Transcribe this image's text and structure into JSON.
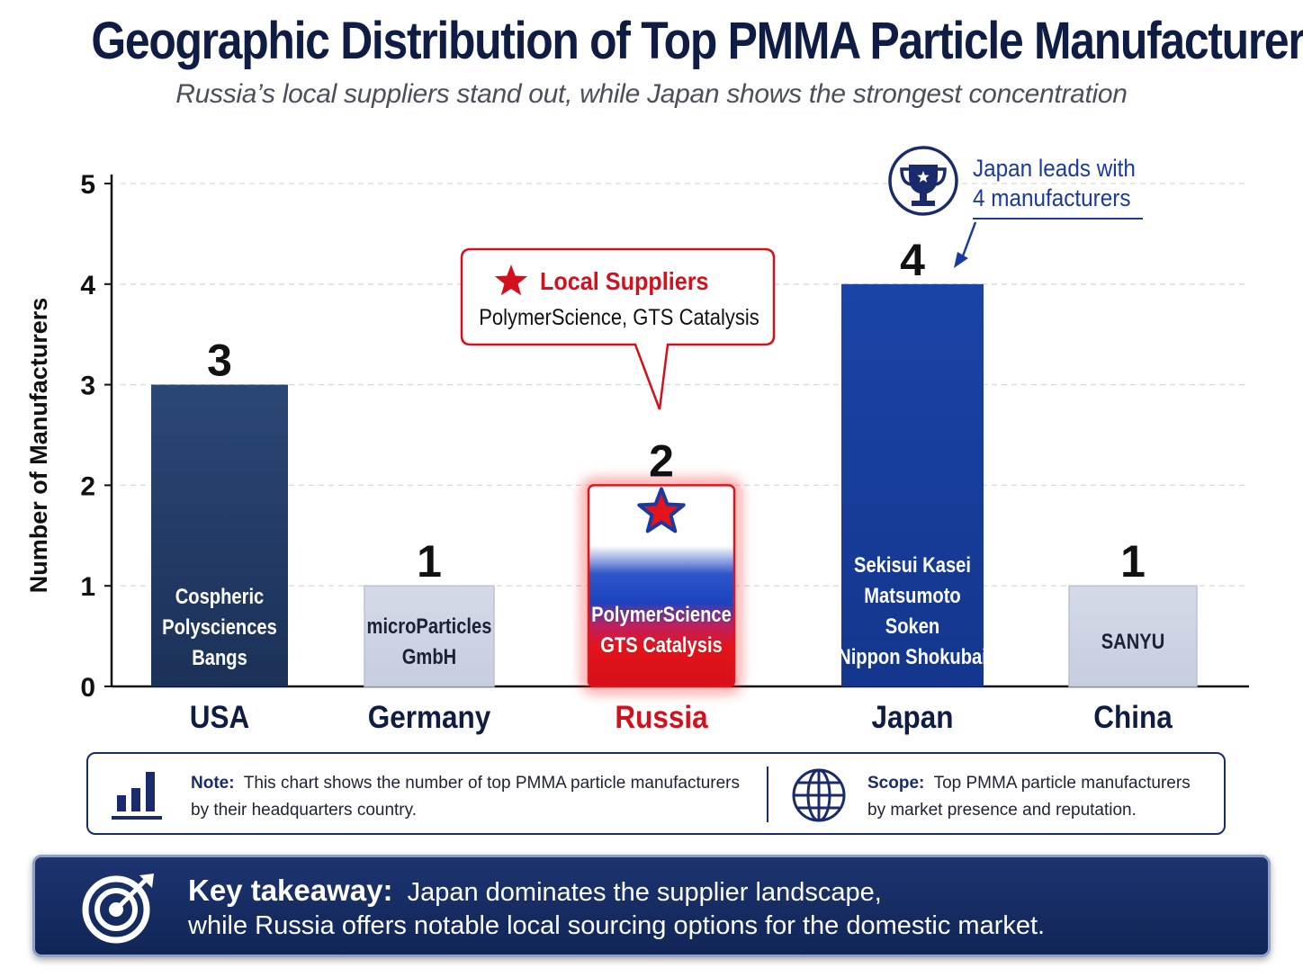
{
  "title": "Geographic Distribution of Top PMMA Particle Manufacturers",
  "subtitle": "Russia’s local suppliers stand out, while Japan shows the strongest concentration",
  "chart_data": {
    "type": "bar",
    "ylabel": "Number of Manufacturers",
    "xlabel": "",
    "ylim": [
      0,
      5
    ],
    "yticks": [
      "0",
      "1",
      "2",
      "3",
      "4",
      "5"
    ],
    "grid": true,
    "categories": [
      "USA",
      "Germany",
      "Russia",
      "Japan",
      "China"
    ],
    "values": [
      3,
      1,
      2,
      4,
      1
    ],
    "value_labels": [
      "3",
      "1",
      "2",
      "4",
      "1"
    ],
    "bar_names": [
      [
        "Cospheric",
        "Polysciences",
        "Bangs"
      ],
      [
        "microParticles",
        "GmbH"
      ],
      [
        "PolymerScience",
        "GTS Catalysis"
      ],
      [
        "Sekisui Kasei",
        "Matsumoto",
        "Soken",
        "Nippon Shokubai"
      ],
      [
        "SANYU"
      ]
    ],
    "colors": [
      "#223d69",
      "#cfd6e4",
      "#e3141b",
      "#1840a0",
      "#cfd6e4"
    ],
    "highlight": "Russia",
    "highlight_color": "#d4101c",
    "callouts": {
      "local_title": "Local Suppliers",
      "local_text": "PolymerScience, GTS Catalysis",
      "leader_line1": "Japan leads with",
      "leader_line2": "4 manufacturers"
    }
  },
  "note": {
    "label": "Note:",
    "line1": "This chart shows the number of top PMMA particle manufacturers",
    "line2": "by their headquarters country."
  },
  "scope": {
    "label": "Scope:",
    "line1": "Top PMMA particle manufacturers",
    "line2": "by market presence and reputation."
  },
  "takeaway": {
    "label": "Key takeaway:",
    "line1": "Japan dominates the supplier landscape,",
    "line2": "while Russia offers notable local sourcing options for the domestic market."
  },
  "icons": [
    "bar-chart-icon",
    "globe-icon",
    "target-icon",
    "trophy-icon",
    "star-icon"
  ]
}
